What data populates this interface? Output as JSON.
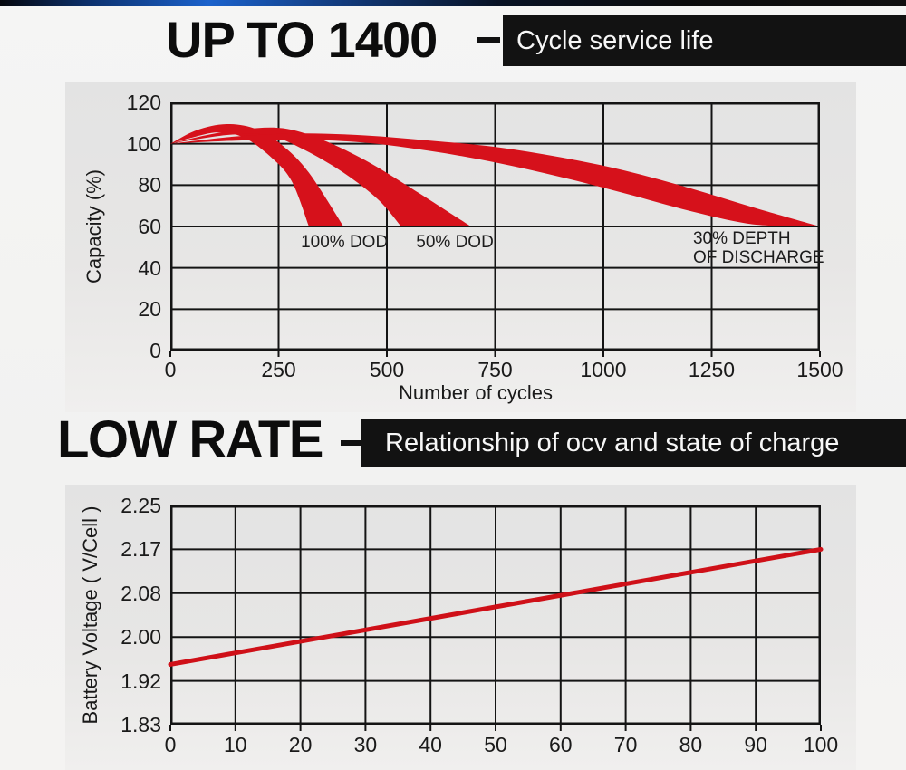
{
  "header1": {
    "title": "UP TO 1400",
    "tag": "Cycle service life"
  },
  "header2": {
    "title": "LOW RATE",
    "tag": "Relationship of ocv and state of charge"
  },
  "colors": {
    "accent_red": "#d6111b",
    "line_red": "#cf1018",
    "grid_black": "#141414",
    "tag_bg": "#121212",
    "topbar_blue": "#1b62cc"
  },
  "chart_data": [
    {
      "type": "area",
      "title": "Cycle service life",
      "xlabel": "Number of cycles",
      "ylabel": "Capacity (%)",
      "xlim": [
        0,
        1500
      ],
      "ylim": [
        0,
        120
      ],
      "xticks": [
        0,
        250,
        500,
        750,
        1000,
        1250,
        1500
      ],
      "yticks": [
        120,
        100,
        80,
        60,
        40,
        20,
        0
      ],
      "grid": true,
      "legend": "none",
      "series": [
        {
          "name": "100% DOD",
          "band_top": [
            [
              0,
              100
            ],
            [
              60,
              106.5
            ],
            [
              130,
              109.5
            ],
            [
              200,
              107
            ],
            [
              260,
              99
            ],
            [
              320,
              86
            ],
            [
              400,
              60
            ]
          ],
          "band_bottom": [
            [
              0,
              100
            ],
            [
              50,
              103
            ],
            [
              110,
              105.5
            ],
            [
              170,
              103
            ],
            [
              230,
              94
            ],
            [
              280,
              82
            ],
            [
              320,
              60
            ]
          ]
        },
        {
          "name": "50% DOD",
          "band_top": [
            [
              0,
              100
            ],
            [
              80,
              104
            ],
            [
              170,
              107
            ],
            [
              260,
              107.5
            ],
            [
              350,
              102
            ],
            [
              450,
              92
            ],
            [
              560,
              78
            ],
            [
              694,
              60
            ]
          ],
          "band_bottom": [
            [
              0,
              100
            ],
            [
              70,
              102.5
            ],
            [
              150,
              104.5
            ],
            [
              230,
              104
            ],
            [
              310,
              97
            ],
            [
              400,
              86
            ],
            [
              480,
              73
            ],
            [
              533,
              60
            ]
          ]
        },
        {
          "name": "30% DEPTH OF DISCHARGE",
          "band_top": [
            [
              0,
              100
            ],
            [
              150,
              103.5
            ],
            [
              300,
              105
            ],
            [
              450,
              104
            ],
            [
              600,
              101.5
            ],
            [
              750,
              98.5
            ],
            [
              900,
              93.5
            ],
            [
              1050,
              87
            ],
            [
              1200,
              78.5
            ],
            [
              1350,
              69
            ],
            [
              1500,
              60
            ]
          ],
          "band_bottom": [
            [
              0,
              100
            ],
            [
              150,
              101.5
            ],
            [
              300,
              102
            ],
            [
              450,
              100.5
            ],
            [
              600,
              96.5
            ],
            [
              750,
              91
            ],
            [
              900,
              84
            ],
            [
              1050,
              76
            ],
            [
              1200,
              67.5
            ],
            [
              1330,
              61.5
            ],
            [
              1430,
              60
            ]
          ]
        }
      ],
      "annotations": [
        {
          "text": "100% DOD",
          "x": 402,
          "y": 52,
          "align": "center"
        },
        {
          "text": "50% DOD",
          "x": 657,
          "y": 52,
          "align": "center"
        },
        {
          "text": "30% DEPTH\nOF DISCHARGE",
          "x": 1207,
          "y": 54,
          "align": "left"
        }
      ]
    },
    {
      "type": "line",
      "title": "Relationship of ocv and state of charge",
      "xlabel": "",
      "ylabel": "Battery Voltage ( V/Cell )",
      "xlim": [
        0,
        100
      ],
      "xticks": [
        0,
        10,
        20,
        30,
        40,
        50,
        60,
        70,
        80,
        90,
        100
      ],
      "ytick_labels": [
        "2.25",
        "2.17",
        "2.08",
        "2.00",
        "1.92",
        "1.83"
      ],
      "grid": true,
      "legend": "none",
      "series": [
        {
          "name": "OCV",
          "x": [
            0,
            100
          ],
          "v": [
            1.95,
            2.17
          ]
        }
      ]
    }
  ]
}
